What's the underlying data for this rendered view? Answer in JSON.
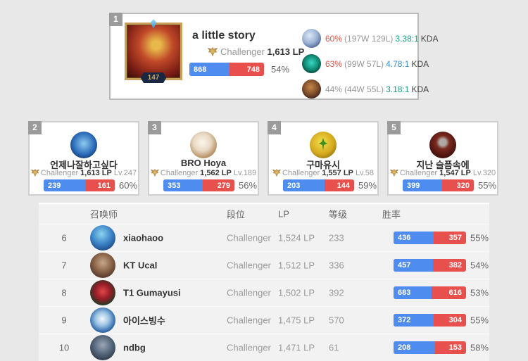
{
  "colors": {
    "win_blue": "#4e8cf0",
    "loss_red": "#e8504e",
    "rate_red": "#e0564a",
    "rate_gray": "#999999",
    "kda_teal": "#16a085",
    "kda_blue": "#3a8fd8",
    "badge_gray": "#9b9b9b"
  },
  "top_card": {
    "rank": "1",
    "summoner_level": "147",
    "name": "a little story",
    "tier": "Challenger",
    "lp": "1,613 LP",
    "wins": "868",
    "losses": "748",
    "win_rate": "54%",
    "champions": [
      {
        "icon": "champion-1",
        "win_rate": "60%",
        "win_rate_color": "#e0564a",
        "record": "(197W 129L)",
        "kda": "3.38:1",
        "kda_color": "#16a085",
        "kda_label": "KDA"
      },
      {
        "icon": "champion-2",
        "win_rate": "63%",
        "win_rate_color": "#e0564a",
        "record": "(99W 57L)",
        "kda": "4.78:1",
        "kda_color": "#3a8fd8",
        "kda_label": "KDA"
      },
      {
        "icon": "champion-3",
        "win_rate": "44%",
        "win_rate_color": "#999999",
        "record": "(44W 55L)",
        "kda": "3.18:1",
        "kda_color": "#16a085",
        "kda_label": "KDA"
      }
    ]
  },
  "cards": [
    {
      "rank": "2",
      "name": "언제나잘하고싶다",
      "tier": "Challenger",
      "lp": "1,613 LP",
      "level": "Lv.247",
      "wins": "239",
      "losses": "161",
      "win_rate": "60%"
    },
    {
      "rank": "3",
      "name": "BRO Hoya",
      "tier": "Challenger",
      "lp": "1,562 LP",
      "level": "Lv.189",
      "wins": "353",
      "losses": "279",
      "win_rate": "56%"
    },
    {
      "rank": "4",
      "name": "구마유시",
      "tier": "Challenger",
      "lp": "1,557 LP",
      "level": "Lv.58",
      "wins": "203",
      "losses": "144",
      "win_rate": "59%"
    },
    {
      "rank": "5",
      "name": "지난 슬픔속에",
      "tier": "Challenger",
      "lp": "1,547 LP",
      "level": "Lv.320",
      "wins": "399",
      "losses": "320",
      "win_rate": "55%"
    }
  ],
  "table": {
    "headers": {
      "summoner": "召唤师",
      "tier": "段位",
      "lp": "LP",
      "level": "等级",
      "win_rate": "胜率"
    },
    "rows": [
      {
        "rank": "6",
        "name": "xiaohaoo",
        "tier": "Challenger",
        "lp": "1,524 LP",
        "level": "233",
        "wins": "436",
        "losses": "357",
        "win_rate": "55%"
      },
      {
        "rank": "7",
        "name": "KT Ucal",
        "tier": "Challenger",
        "lp": "1,512 LP",
        "level": "336",
        "wins": "457",
        "losses": "382",
        "win_rate": "54%"
      },
      {
        "rank": "8",
        "name": "T1 Gumayusi",
        "tier": "Challenger",
        "lp": "1,502 LP",
        "level": "392",
        "wins": "683",
        "losses": "616",
        "win_rate": "53%"
      },
      {
        "rank": "9",
        "name": "아이스빙수",
        "tier": "Challenger",
        "lp": "1,475 LP",
        "level": "570",
        "wins": "372",
        "losses": "304",
        "win_rate": "55%"
      },
      {
        "rank": "10",
        "name": "ndbg",
        "tier": "Challenger",
        "lp": "1,471 LP",
        "level": "61",
        "wins": "208",
        "losses": "153",
        "win_rate": "58%"
      }
    ]
  }
}
